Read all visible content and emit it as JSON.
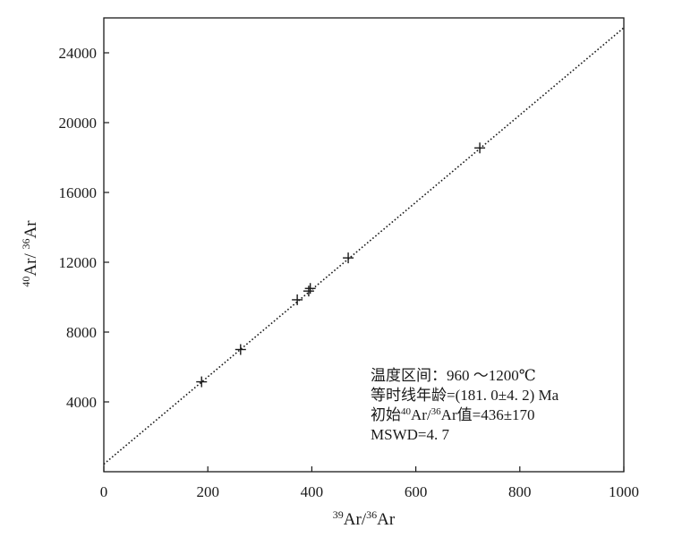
{
  "chart_data": {
    "type": "scatter",
    "xlabel": {
      "sup1": "39",
      "base1": "Ar/",
      "sup2": "36",
      "base2": "Ar"
    },
    "ylabel": {
      "sup1": "40",
      "base1": "Ar/ ",
      "sup2": "36",
      "base2": "Ar"
    },
    "xlim": [
      0,
      1000
    ],
    "ylim": [
      0,
      26000
    ],
    "xticks": [
      0,
      200,
      400,
      600,
      800,
      1000
    ],
    "xtick_labels": [
      "0",
      "200",
      "400",
      "600",
      "800",
      "1000"
    ],
    "yticks": [
      4000,
      8000,
      12000,
      16000,
      20000,
      24000
    ],
    "ytick_labels": [
      "4000",
      "8000",
      "12000",
      "16000",
      "20000",
      "24000"
    ],
    "grid": false,
    "points": [
      {
        "x": 188,
        "y": 5150
      },
      {
        "x": 263,
        "y": 7000
      },
      {
        "x": 372,
        "y": 9850
      },
      {
        "x": 394,
        "y": 10350
      },
      {
        "x": 397,
        "y": 10500
      },
      {
        "x": 470,
        "y": 12250
      },
      {
        "x": 723,
        "y": 18550
      }
    ],
    "fit_line": {
      "x": [
        0,
        1000
      ],
      "y": [
        436,
        25436
      ],
      "style": "dotted"
    },
    "annotations": [
      {
        "parts": [
          {
            "t": "温度区间：960 ～1200℃"
          }
        ]
      },
      {
        "parts": [
          {
            "t": "等时线年龄=(181. 0±4. 2) Ma"
          }
        ]
      },
      {
        "parts": [
          {
            "t": "初始"
          },
          {
            "t": "40",
            "sup": true
          },
          {
            "t": "Ar/"
          },
          {
            "t": "36",
            "sup": true
          },
          {
            "t": "Ar值=436±170"
          }
        ]
      },
      {
        "parts": [
          {
            "t": "MSWD=4. 7"
          }
        ]
      }
    ],
    "annotation_position": "bottom-right",
    "colors": {
      "axes": "#1a1a1a",
      "points": "#1a1a1a",
      "line": "#1a1a1a",
      "background": "#ffffff"
    }
  }
}
